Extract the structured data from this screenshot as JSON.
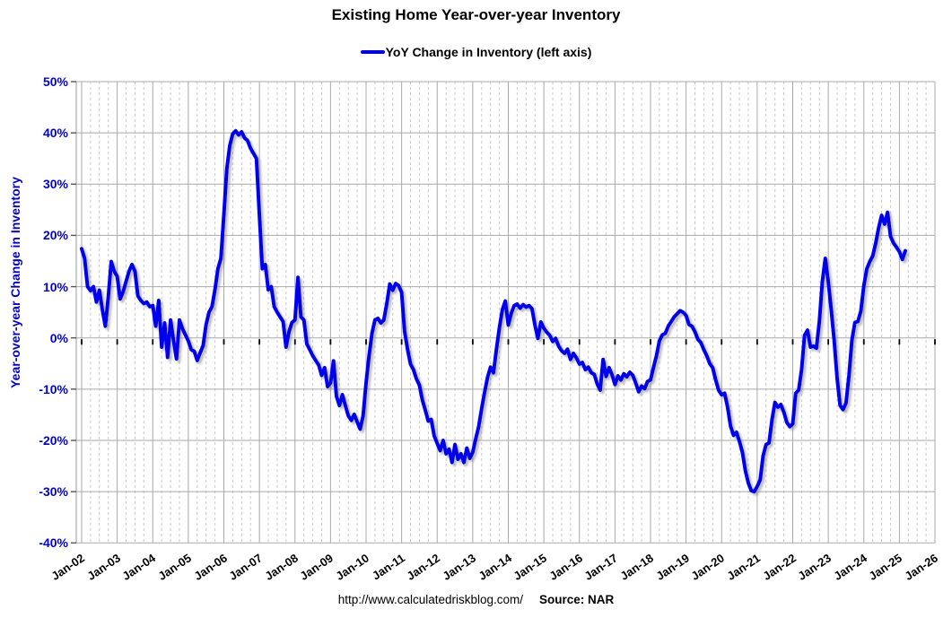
{
  "page": {
    "footer_url": "http://www.calculatedriskblog.com/",
    "footer_source": "Source: NAR"
  },
  "chart_data": {
    "type": "line",
    "title": "Existing Home Year-over-year Inventory",
    "legend": [
      {
        "label": "YoY Change in Inventory (left axis)",
        "color": "#0000ee"
      }
    ],
    "legend_position": "top-center",
    "ylabel": "Year-over-year Change in Inventory",
    "xlabel": "",
    "ylim": [
      -40,
      50
    ],
    "y_tick_step": 10,
    "y_tick_labels": [
      "50%",
      "40%",
      "30%",
      "20%",
      "10%",
      "0%",
      "-10%",
      "-20%",
      "-30%",
      "-40%"
    ],
    "x_tick_labels": [
      "Jan-02",
      "Jan-03",
      "Jan-04",
      "Jan-05",
      "Jan-06",
      "Jan-07",
      "Jan-08",
      "Jan-09",
      "Jan-10",
      "Jan-11",
      "Jan-12",
      "Jan-13",
      "Jan-14",
      "Jan-15",
      "Jan-16",
      "Jan-17",
      "Jan-18",
      "Jan-19",
      "Jan-20",
      "Jan-21",
      "Jan-22",
      "Jan-23",
      "Jan-24",
      "Jan-25",
      "Jan-26"
    ],
    "grid": "major-solid, quarterly-minor-dashed",
    "frequency": "monthly",
    "start": "Jan-2002",
    "end": "Mar-2025",
    "line_color": "#0000ee",
    "axis_label_color": "#0000dd",
    "grid_color": "#a9a9a9",
    "minor_grid_color": "#c9c9c9",
    "zero_line_color": "#000000",
    "series": [
      {
        "name": "YoY Change in Inventory",
        "values": [
          17.4,
          15.5,
          10,
          9.2,
          10,
          7,
          9.3,
          5.5,
          2.3,
          8,
          14.9,
          13,
          12,
          7.6,
          9,
          11,
          13,
          14.3,
          13,
          8.2,
          7.3,
          6.7,
          7,
          6.1,
          6.3,
          2.3,
          7.3,
          -1.8,
          2.9,
          -3.8,
          3.5,
          -0.5,
          -4.1,
          3.5,
          1.8,
          0.6,
          -0.6,
          -2.3,
          -2.6,
          -4.4,
          -2.9,
          -1.5,
          2.6,
          5,
          6.1,
          9.4,
          13.5,
          15.5,
          24,
          33,
          37.5,
          39.8,
          40.4,
          39.6,
          40.2,
          39,
          38.5,
          37,
          36,
          35,
          24,
          13.5,
          14.3,
          9.4,
          10,
          6.1,
          5,
          4.1,
          3.2,
          -1.8,
          1.2,
          3,
          3.5,
          11.8,
          4.1,
          3.5,
          -1.2,
          -2.3,
          -3.5,
          -4.4,
          -5.3,
          -7.3,
          -5.8,
          -9.5,
          -8.8,
          -4.5,
          -11.4,
          -13.2,
          -11.1,
          -13.2,
          -15.2,
          -16.1,
          -14.9,
          -16.4,
          -17.8,
          -15.2,
          -8.8,
          -3.5,
          0.9,
          3.5,
          3.8,
          2.9,
          3.5,
          6.7,
          10.5,
          9.3,
          10.6,
          10.2,
          8.9,
          1.3,
          -2.2,
          -5.1,
          -6.2,
          -8,
          -9.2,
          -12.1,
          -14.1,
          -16.2,
          -15.9,
          -19.1,
          -20.6,
          -22,
          -20,
          -22.6,
          -21.7,
          -24.3,
          -20.8,
          -23.7,
          -22.6,
          -24.3,
          -21.5,
          -23.5,
          -22.3,
          -19.7,
          -17.3,
          -13.8,
          -10.6,
          -7.7,
          -5.7,
          -6.8,
          -2.2,
          2,
          5.5,
          7.2,
          2.5,
          4.8,
          6.3,
          6.6,
          5.8,
          6.5,
          6,
          6.3,
          5.7,
          2.5,
          -0.1,
          3.1,
          1.9,
          1.1,
          0.5,
          -0.7,
          -0.1,
          -1.6,
          -2.5,
          -3,
          -2.2,
          -4.2,
          -3,
          -3.9,
          -5.1,
          -4.8,
          -6.2,
          -5.7,
          -6.8,
          -7.1,
          -9,
          -10.2,
          -4.2,
          -7.5,
          -5.8,
          -7.2,
          -9.1,
          -7.4,
          -8.2,
          -7,
          -7.6,
          -6.7,
          -7.3,
          -8.8,
          -10.5,
          -9.4,
          -9.9,
          -8.5,
          -8.2,
          -5.8,
          -3.5,
          -0.6,
          0.6,
          0.9,
          2.3,
          3.2,
          4.1,
          4.7,
          5.3,
          5,
          4.4,
          2.6,
          2.3,
          1.2,
          -0.3,
          -0.9,
          -2.3,
          -3.5,
          -5,
          -5.8,
          -8.2,
          -10.2,
          -11.1,
          -10.8,
          -13.5,
          -17.2,
          -19,
          -18.4,
          -20.2,
          -22.3,
          -25.9,
          -28.3,
          -29.8,
          -30,
          -29,
          -27.7,
          -23,
          -20.8,
          -20.5,
          -16,
          -12.6,
          -13.5,
          -13,
          -14.5,
          -16.5,
          -17.3,
          -16.8,
          -10.8,
          -10.2,
          -6.2,
          0.5,
          1.5,
          -1.8,
          -1.6,
          -2,
          3.2,
          11,
          15.5,
          11,
          5.5,
          -0.5,
          -7.9,
          -13.2,
          -14,
          -12.7,
          -7.3,
          -0.4,
          3,
          3.2,
          5.2,
          10.2,
          13.5,
          14.9,
          16,
          18.5,
          21.5,
          23.9,
          22.2,
          24.5,
          19.8,
          18.5,
          17.7,
          16.8,
          15.3,
          17
        ]
      }
    ]
  }
}
